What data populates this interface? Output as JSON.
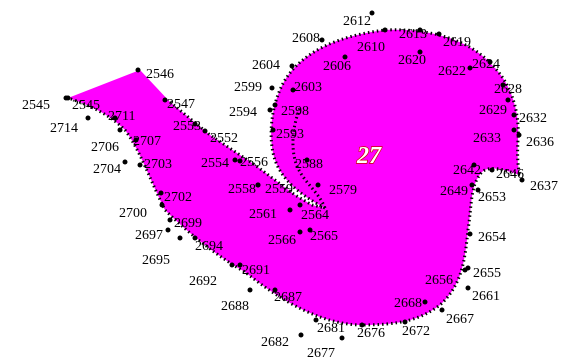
{
  "diagram": {
    "region_label": "27",
    "fill_color": "#ff00ff",
    "outline_color": "#000000",
    "vertex_labels": [
      "2612",
      "2613",
      "2619",
      "2608",
      "2610",
      "2620",
      "2624",
      "2604",
      "2606",
      "2622",
      "2628",
      "2599",
      "2603",
      "2546",
      "2594",
      "2598",
      "2629",
      "2632",
      "2545",
      "2545",
      "2547",
      "2714",
      "2711",
      "2553",
      "2593",
      "2633",
      "2636",
      "2706",
      "2707",
      "2552",
      "2704",
      "2703",
      "2556",
      "2554",
      "2588",
      "2642",
      "2646",
      "2637",
      "2579",
      "2649",
      "2653",
      "2558",
      "2559",
      "2702",
      "2700",
      "2561",
      "2564",
      "2699",
      "2697",
      "2566",
      "2565",
      "2654",
      "2694",
      "2695",
      "2691",
      "2656",
      "2655",
      "2692",
      "2661",
      "2687",
      "2688",
      "2668",
      "2667",
      "2681",
      "2676",
      "2672",
      "2682",
      "2677"
    ]
  }
}
